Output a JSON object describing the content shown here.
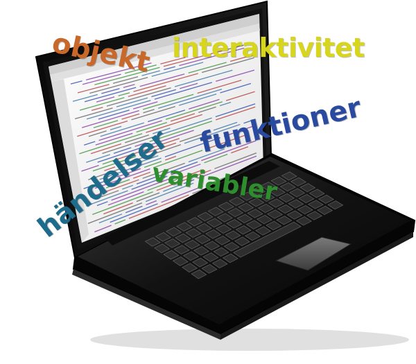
{
  "words": {
    "objekt": "objekt",
    "interaktivitet": "interaktivitet",
    "funktioner": "funktioner",
    "handelser": "händelser",
    "variabler": "variabler"
  },
  "colors": {
    "objekt": "#c8682a",
    "interaktivitet": "#d8d61c",
    "funktioner": "#2a4aa0",
    "handelser": "#1e6b8c",
    "variabler": "#2e8e2e",
    "laptop_body": "#1a1a1a",
    "screen_bg": "#f2f2f2"
  },
  "icons": {
    "laptop": "laptop-icon",
    "keyboard": "keyboard-icon",
    "trackpad": "trackpad-icon"
  }
}
